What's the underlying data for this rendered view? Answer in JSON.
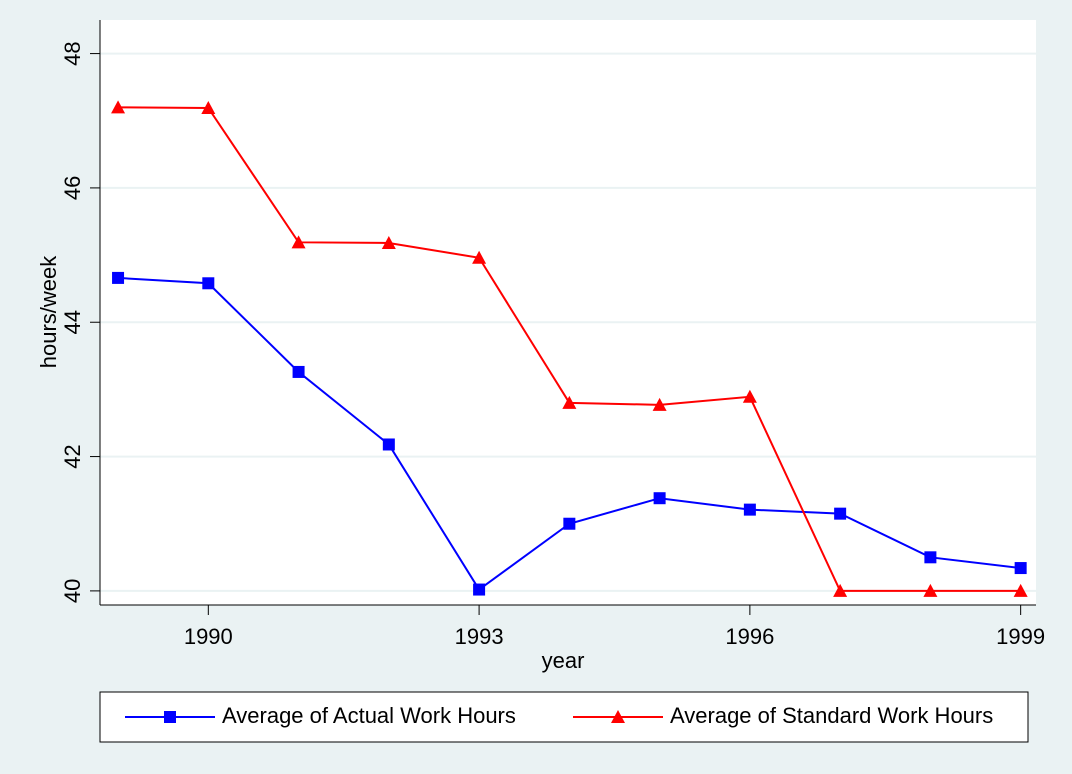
{
  "chart_data": {
    "type": "line",
    "x_label": "year",
    "y_label": "hours/week",
    "x": [
      1989,
      1990,
      1991,
      1992,
      1993,
      1994,
      1995,
      1996,
      1997,
      1998,
      1999
    ],
    "series": [
      {
        "name": "Average of Actual Work Hours",
        "color": "#0000ff",
        "marker": "square",
        "values": [
          44.66,
          44.58,
          43.26,
          42.18,
          40.02,
          41.0,
          41.38,
          41.21,
          41.15,
          40.5,
          40.34
        ]
      },
      {
        "name": "Average of Standard Work Hours",
        "color": "#ff0000",
        "marker": "triangle",
        "values": [
          47.2,
          47.19,
          45.19,
          45.18,
          44.96,
          42.8,
          42.77,
          42.89,
          40.0,
          40.0,
          40.0
        ]
      }
    ],
    "xlim": [
      1988.8,
      1999.17
    ],
    "ylim": [
      39.79,
      48.5
    ],
    "xticks": [
      1990,
      1993,
      1996,
      1999
    ],
    "yticks": [
      40,
      42,
      44,
      46,
      48
    ],
    "grid": true,
    "legend": "bottom"
  }
}
